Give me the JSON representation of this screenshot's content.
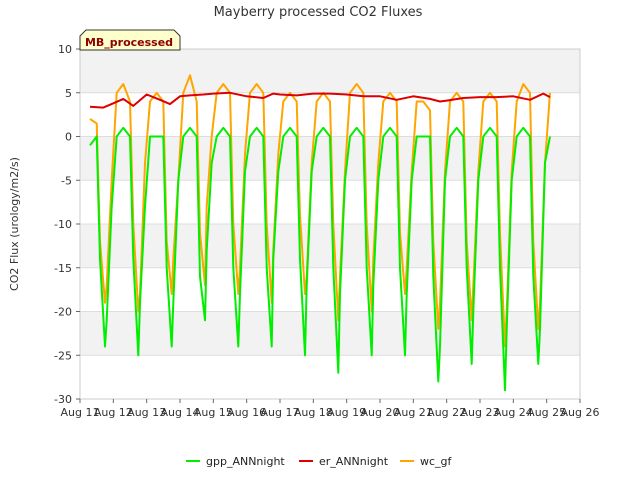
{
  "chart_data": {
    "type": "line",
    "title": "Mayberry processed CO2 Fluxes",
    "badge": "MB_processed",
    "xlabel": "",
    "ylabel": "CO2 Flux (urology/m2/s)",
    "xlim": [
      11,
      26
    ],
    "ylim": [
      -30,
      10
    ],
    "x_ticks": [
      11,
      12,
      13,
      14,
      15,
      16,
      17,
      18,
      19,
      20,
      21,
      22,
      23,
      24,
      25,
      26
    ],
    "x_tick_labels": [
      "Aug 11",
      "Aug 12",
      "Aug 13",
      "Aug 14",
      "Aug 15",
      "Aug 16",
      "Aug 17",
      "Aug 18",
      "Aug 19",
      "Aug 20",
      "Aug 21",
      "Aug 22",
      "Aug 23",
      "Aug 24",
      "Aug 25",
      "Aug 26"
    ],
    "y_ticks": [
      10,
      5,
      0,
      -5,
      -10,
      -15,
      -20,
      -25,
      -30
    ],
    "y_tick_labels": [
      "10",
      "5",
      "0",
      "-5",
      "-10",
      "-15",
      "-20",
      "-25",
      "-30"
    ],
    "grid": "horizontal bands",
    "legend_position": "bottom",
    "series": [
      {
        "name": "gpp_ANNnight",
        "color": "#00ee00",
        "x": [
          11.3,
          11.5,
          11.6,
          11.75,
          11.8,
          11.95,
          12.1,
          12.3,
          12.5,
          12.6,
          12.75,
          12.8,
          12.95,
          13.1,
          13.3,
          13.5,
          13.6,
          13.75,
          13.8,
          13.95,
          14.1,
          14.3,
          14.5,
          14.6,
          14.75,
          14.8,
          14.95,
          15.1,
          15.3,
          15.5,
          15.6,
          15.75,
          15.8,
          15.95,
          16.1,
          16.3,
          16.5,
          16.6,
          16.75,
          16.8,
          16.95,
          17.1,
          17.3,
          17.5,
          17.6,
          17.75,
          17.8,
          17.95,
          18.1,
          18.3,
          18.5,
          18.6,
          18.75,
          18.8,
          18.95,
          19.1,
          19.3,
          19.5,
          19.6,
          19.75,
          19.8,
          19.95,
          20.1,
          20.3,
          20.5,
          20.6,
          20.75,
          20.8,
          20.95,
          21.1,
          21.3,
          21.5,
          21.6,
          21.75,
          21.8,
          21.95,
          22.1,
          22.3,
          22.5,
          22.6,
          22.75,
          22.8,
          22.95,
          23.1,
          23.3,
          23.5,
          23.6,
          23.75,
          23.8,
          23.95,
          24.1,
          24.3,
          24.5,
          24.6,
          24.75,
          24.8,
          24.95,
          25.1
        ],
        "y": [
          -1,
          0,
          -14,
          -24,
          -21,
          -8,
          0,
          1,
          0,
          -14,
          -25,
          -19,
          -8,
          0,
          0,
          0,
          -15,
          -24,
          -19,
          -5,
          0,
          1,
          0,
          -16,
          -21,
          -13,
          -3,
          0,
          1,
          0,
          -15,
          -24,
          -18,
          -4,
          0,
          1,
          0,
          -15,
          -24,
          -14,
          -4,
          0,
          1,
          0,
          -14,
          -25,
          -17,
          -4,
          0,
          1,
          0,
          -15,
          -27,
          -18,
          -5,
          0,
          1,
          0,
          -15,
          -25,
          -17,
          -5,
          0,
          1,
          0,
          -15,
          -25,
          -18,
          -5,
          0,
          0,
          0,
          -16,
          -28,
          -24,
          -5,
          0,
          1,
          0,
          -15,
          -26,
          -20,
          -5,
          0,
          1,
          0,
          -15,
          -29,
          -22,
          -5,
          0,
          1,
          0,
          -16,
          -26,
          -22,
          -3,
          0
        ]
      },
      {
        "name": "er_ANNnight",
        "color": "#dd0000",
        "x": [
          11.3,
          11.7,
          12.0,
          12.3,
          12.6,
          13.0,
          13.4,
          13.7,
          14.0,
          14.3,
          14.7,
          15.0,
          15.5,
          16.0,
          16.5,
          16.8,
          17.0,
          17.5,
          18.0,
          18.5,
          19.0,
          19.5,
          20.0,
          20.5,
          21.0,
          21.5,
          21.8,
          22.0,
          22.5,
          23.0,
          23.5,
          24.0,
          24.5,
          24.9,
          25.1
        ],
        "y": [
          3.4,
          3.3,
          3.8,
          4.3,
          3.5,
          4.8,
          4.2,
          3.7,
          4.6,
          4.7,
          4.8,
          4.9,
          5.0,
          4.6,
          4.4,
          4.9,
          4.8,
          4.7,
          4.9,
          4.9,
          4.8,
          4.6,
          4.6,
          4.2,
          4.6,
          4.3,
          4.0,
          4.1,
          4.4,
          4.5,
          4.5,
          4.6,
          4.2,
          4.9,
          4.5
        ]
      },
      {
        "name": "wc_gf",
        "color": "#ffa500",
        "x": [
          11.3,
          11.5,
          11.6,
          11.75,
          11.8,
          11.95,
          12.1,
          12.3,
          12.5,
          12.6,
          12.75,
          12.8,
          12.95,
          13.1,
          13.3,
          13.5,
          13.6,
          13.75,
          13.8,
          13.95,
          14.1,
          14.3,
          14.5,
          14.6,
          14.75,
          14.8,
          14.95,
          15.1,
          15.3,
          15.5,
          15.6,
          15.75,
          15.8,
          15.95,
          16.1,
          16.3,
          16.5,
          16.6,
          16.75,
          16.8,
          16.95,
          17.1,
          17.3,
          17.5,
          17.6,
          17.75,
          17.8,
          17.95,
          18.1,
          18.3,
          18.5,
          18.6,
          18.75,
          18.8,
          18.95,
          19.1,
          19.3,
          19.5,
          19.6,
          19.75,
          19.8,
          19.95,
          20.1,
          20.3,
          20.5,
          20.6,
          20.75,
          20.8,
          20.95,
          21.1,
          21.3,
          21.5,
          21.6,
          21.75,
          21.8,
          21.95,
          22.1,
          22.3,
          22.5,
          22.6,
          22.75,
          22.8,
          22.95,
          23.1,
          23.3,
          23.5,
          23.6,
          23.75,
          23.8,
          23.95,
          24.1,
          24.3,
          24.5,
          24.6,
          24.75,
          24.8,
          24.95,
          25.1
        ],
        "y": [
          2,
          1.5,
          -12,
          -19,
          -17,
          -5,
          5,
          6,
          4,
          -10,
          -20,
          -18,
          -3,
          4,
          5,
          4,
          -12,
          -18,
          -14,
          -5,
          5,
          7,
          4,
          -11,
          -17,
          -8,
          0,
          5,
          6,
          5,
          -10,
          -18,
          -15,
          -2,
          5,
          6,
          5,
          -10,
          -19,
          -13,
          -2,
          4,
          5,
          4,
          -9,
          -18,
          -16,
          -3,
          4,
          5,
          4,
          -10,
          -21,
          -16,
          -4,
          5,
          6,
          5,
          -10,
          -20,
          -14,
          -3,
          4,
          5,
          4,
          -11,
          -18,
          -15,
          -4,
          4,
          4,
          3,
          -12,
          -22,
          -19,
          -4,
          4,
          5,
          4,
          -12,
          -21,
          -17,
          -4,
          4,
          5,
          4,
          -11,
          -24,
          -20,
          -4,
          4,
          6,
          5,
          -12,
          -22,
          -19,
          -3,
          5
        ]
      }
    ]
  }
}
